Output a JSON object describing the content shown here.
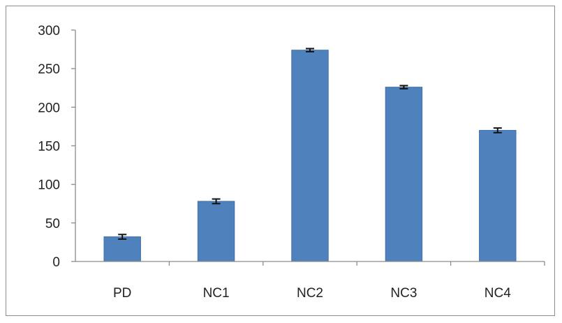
{
  "chart_data": {
    "type": "bar",
    "title": "",
    "xlabel": "",
    "ylabel": "",
    "categories": [
      "PD",
      "NC1",
      "NC2",
      "NC3",
      "NC4"
    ],
    "values": [
      32,
      78,
      274,
      226,
      170
    ],
    "errors": [
      3,
      3,
      2,
      2,
      3
    ],
    "ylim": [
      0,
      300
    ],
    "yticks": [
      0,
      50,
      100,
      150,
      200,
      250,
      300
    ],
    "ytick_labels": [
      "0",
      "50",
      "100",
      "150",
      "200",
      "250",
      "300"
    ],
    "grid": false,
    "legend": "none",
    "bar_color": "#4f81bd",
    "bar_edge_color": "#3f6fa8",
    "error_bar_color": "#111111"
  }
}
